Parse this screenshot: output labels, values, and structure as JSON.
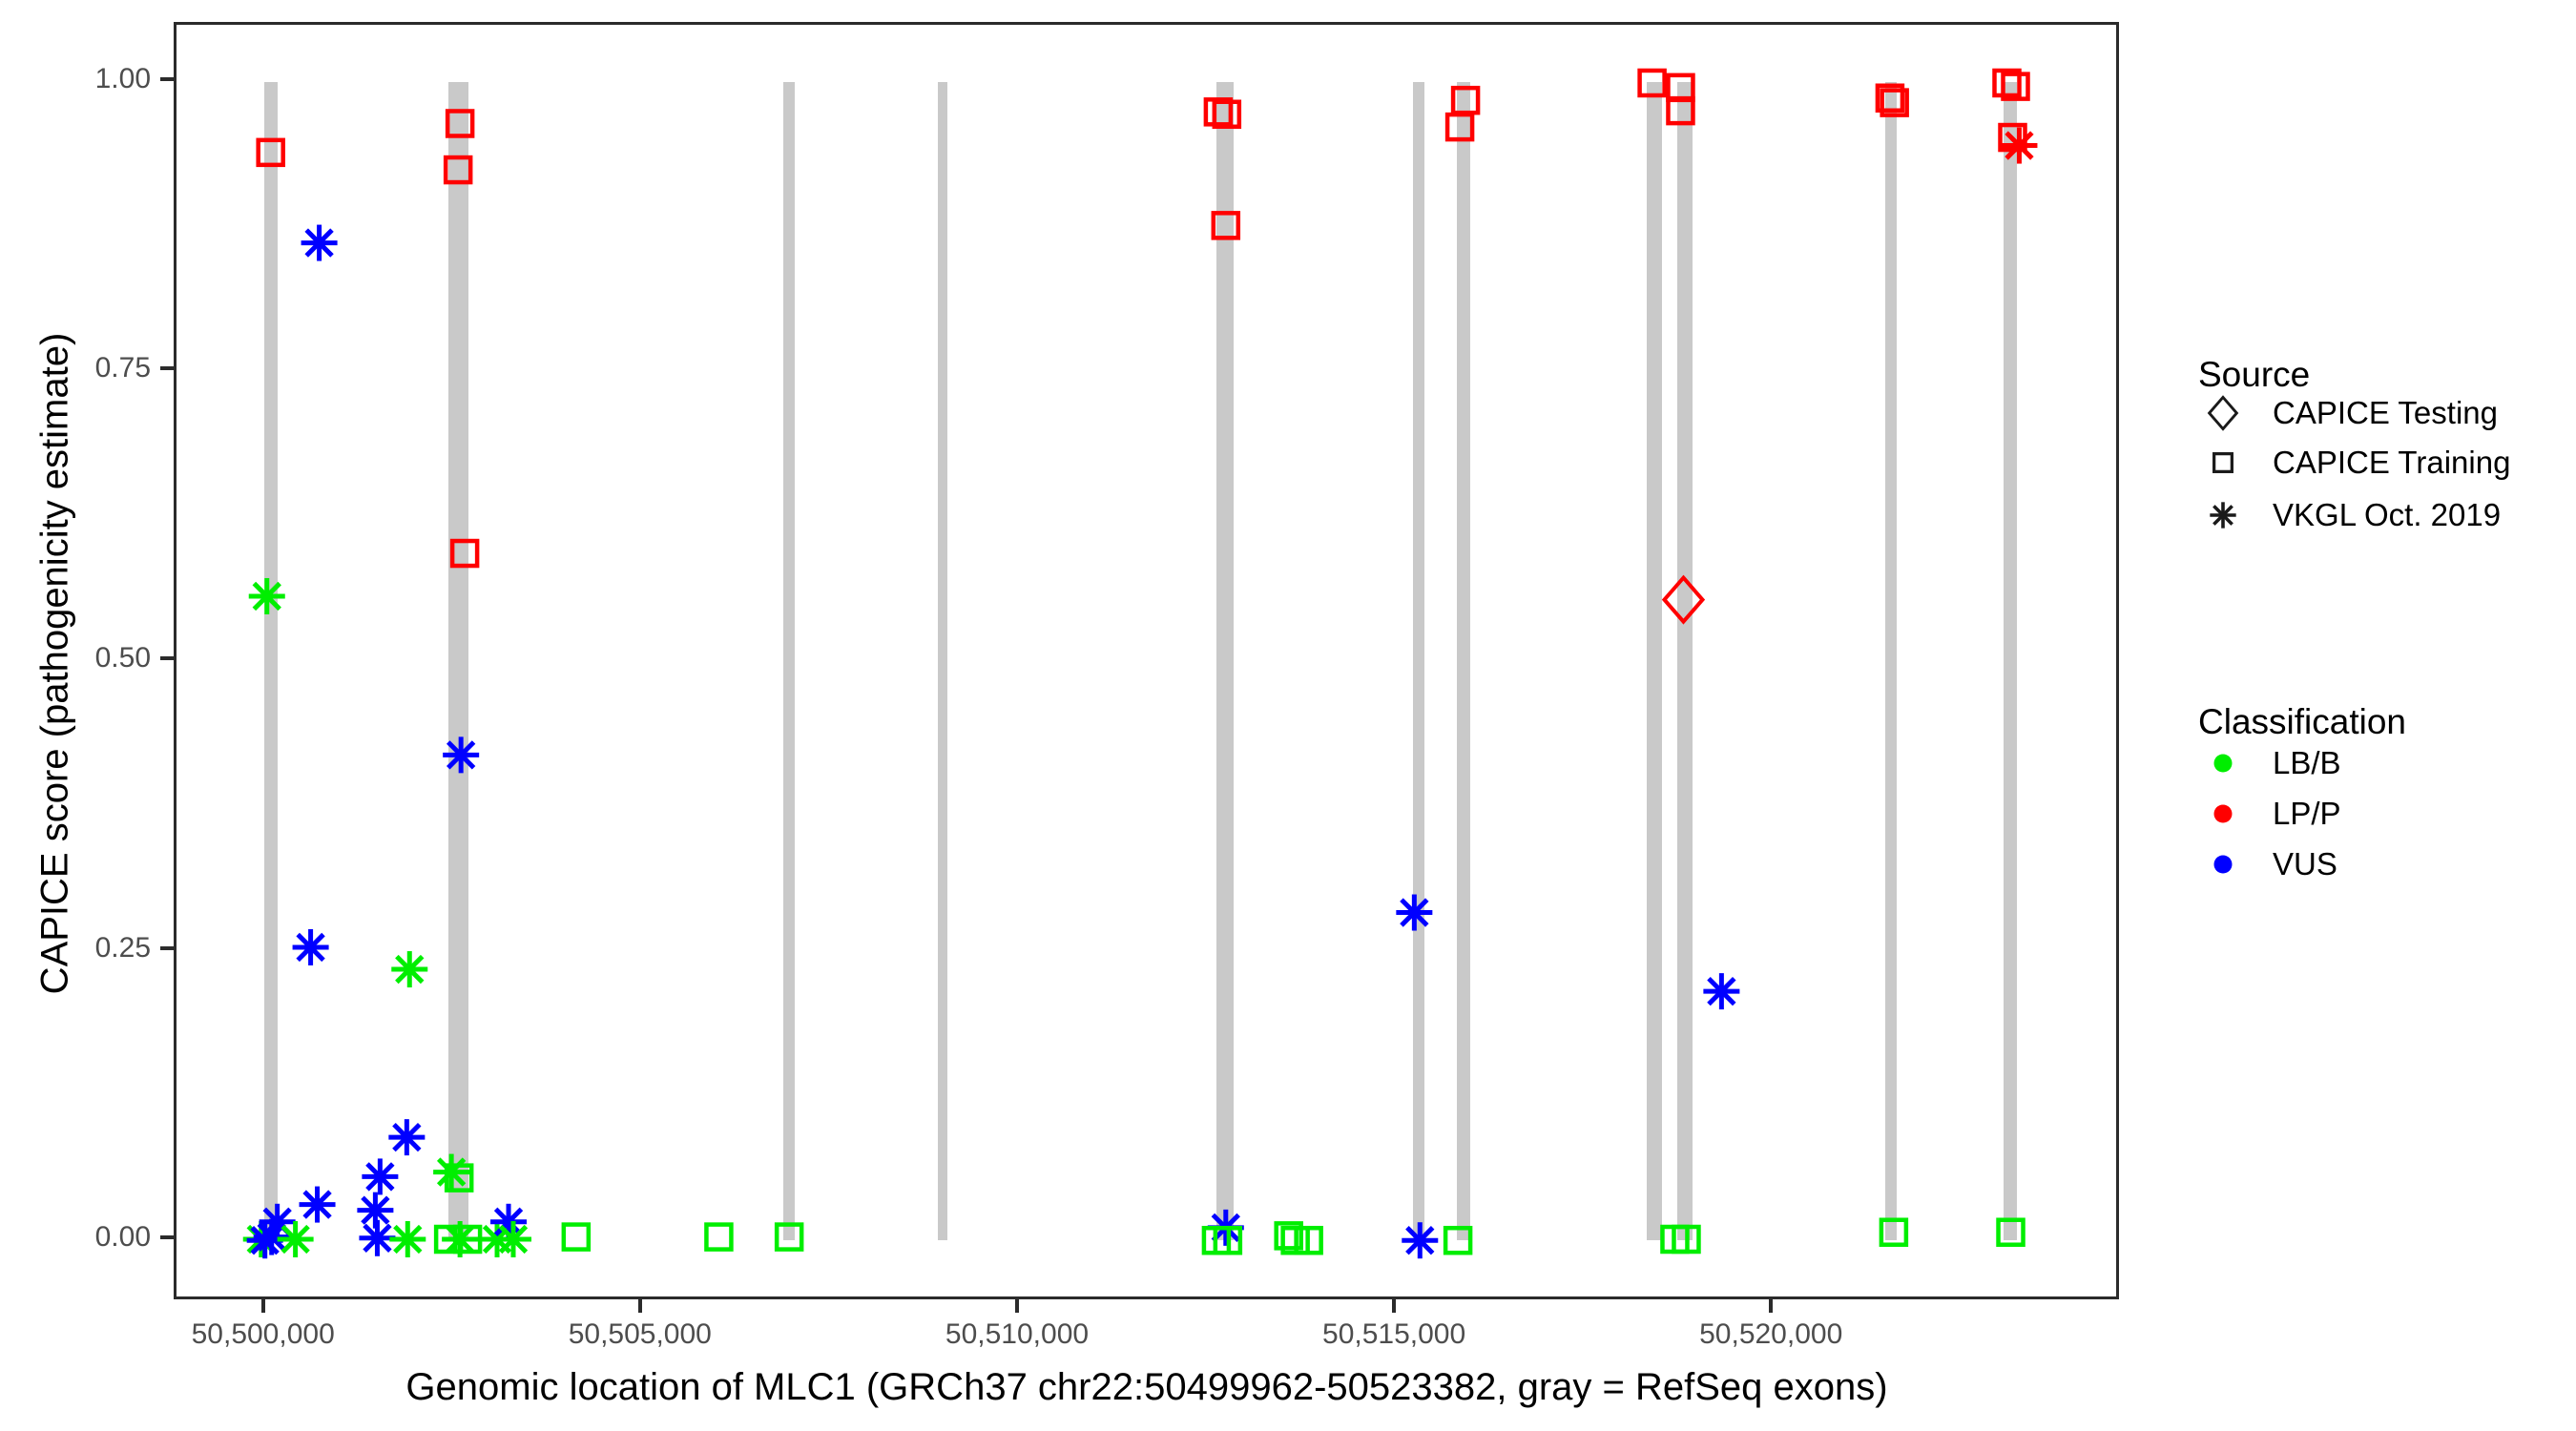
{
  "figure": {
    "x_axis_title": "Genomic location of MLC1 (GRCh37 chr22:50499962-50523382, gray = RefSeq exons)",
    "y_axis_title": "CAPICE score (pathogenicity estimate)"
  },
  "legend": {
    "source": {
      "title": "Source",
      "items": [
        {
          "label": "CAPICE Testing",
          "shape": "diamond"
        },
        {
          "label": "CAPICE Training",
          "shape": "square"
        },
        {
          "label": "VKGL Oct. 2019",
          "shape": "asterisk"
        }
      ]
    },
    "classification": {
      "title": "Classification",
      "items": [
        {
          "label": "LB/B",
          "color": "#00EE00"
        },
        {
          "label": "LP/P",
          "color": "#FF0000"
        },
        {
          "label": "VUS",
          "color": "#0000FF"
        }
      ]
    }
  },
  "chart_data": {
    "type": "scatter",
    "title": "",
    "xlabel": "Genomic location of MLC1 (GRCh37 chr22:50499962-50523382, gray = RefSeq exons)",
    "ylabel": "CAPICE score (pathogenicity estimate)",
    "xlim": [
      50498814,
      50524540
    ],
    "ylim": [
      -0.0484,
      1.0492
    ],
    "grid": false,
    "legend_position": "right",
    "x_ticks": [
      {
        "value": 50500000,
        "label": "50,500,000"
      },
      {
        "value": 50505000,
        "label": "50,505,000"
      },
      {
        "value": 50510000,
        "label": "50,510,000"
      },
      {
        "value": 50515000,
        "label": "50,515,000"
      },
      {
        "value": 50520000,
        "label": "50,520,000"
      }
    ],
    "y_ticks": [
      {
        "value": 0.0,
        "label": "0.00"
      },
      {
        "value": 0.25,
        "label": "0.25"
      },
      {
        "value": 0.5,
        "label": "0.50"
      },
      {
        "value": 0.75,
        "label": "0.75"
      },
      {
        "value": 1.0,
        "label": "1.00"
      }
    ],
    "colors": {
      "LB/B": "#00EE00",
      "LP/P": "#FF0000",
      "VUS": "#0000FF"
    },
    "exon_color": "#c9c9c9",
    "exon_band": {
      "score_min": 0.0,
      "score_max": 1.0
    },
    "exons": [
      {
        "start": 50499975,
        "end": 50500151
      },
      {
        "start": 50502423,
        "end": 50502688
      },
      {
        "start": 50506865,
        "end": 50507016
      },
      {
        "start": 50508909,
        "end": 50509035
      },
      {
        "start": 50512606,
        "end": 50512833
      },
      {
        "start": 50515218,
        "end": 50515369
      },
      {
        "start": 50515798,
        "end": 50515975
      },
      {
        "start": 50518310,
        "end": 50518512
      },
      {
        "start": 50518713,
        "end": 50518915
      },
      {
        "start": 50521476,
        "end": 50521627
      },
      {
        "start": 50523040,
        "end": 50523217
      }
    ],
    "points": [
      {
        "pos": 50499937,
        "score": 0.001,
        "source": "vkgl",
        "classification": "LB/B"
      },
      {
        "pos": 50499987,
        "score": 0.0,
        "source": "vkgl",
        "classification": "VUS"
      },
      {
        "pos": 50500076,
        "score": 0.003,
        "source": "vkgl",
        "classification": "VUS"
      },
      {
        "pos": 50500151,
        "score": 0.016,
        "source": "vkgl",
        "classification": "VUS"
      },
      {
        "pos": 50500391,
        "score": 0.001,
        "source": "vkgl",
        "classification": "LB/B"
      },
      {
        "pos": 50500063,
        "score": 0.939,
        "source": "training",
        "classification": "LP/P"
      },
      {
        "pos": 50500013,
        "score": 0.556,
        "source": "vkgl",
        "classification": "LB/B"
      },
      {
        "pos": 50500593,
        "score": 0.253,
        "source": "vkgl",
        "classification": "VUS"
      },
      {
        "pos": 50500707,
        "score": 0.861,
        "source": "vkgl",
        "classification": "VUS"
      },
      {
        "pos": 50500681,
        "score": 0.031,
        "source": "vkgl",
        "classification": "VUS"
      },
      {
        "pos": 50501451,
        "score": 0.026,
        "source": "vkgl",
        "classification": "VUS"
      },
      {
        "pos": 50501477,
        "score": 0.002,
        "source": "vkgl",
        "classification": "VUS"
      },
      {
        "pos": 50501514,
        "score": 0.055,
        "source": "vkgl",
        "classification": "VUS"
      },
      {
        "pos": 50501868,
        "score": 0.089,
        "source": "vkgl",
        "classification": "VUS"
      },
      {
        "pos": 50501880,
        "score": 0.001,
        "source": "vkgl",
        "classification": "LB/B"
      },
      {
        "pos": 50501905,
        "score": 0.234,
        "source": "vkgl",
        "classification": "LB/B"
      },
      {
        "pos": 50502574,
        "score": 0.964,
        "source": "training",
        "classification": "LP/P"
      },
      {
        "pos": 50502549,
        "score": 0.924,
        "source": "training",
        "classification": "LP/P"
      },
      {
        "pos": 50502637,
        "score": 0.593,
        "source": "training",
        "classification": "LP/P"
      },
      {
        "pos": 50502587,
        "score": 0.419,
        "source": "vkgl",
        "classification": "VUS"
      },
      {
        "pos": 50502460,
        "score": 0.059,
        "source": "vkgl",
        "classification": "LB/B"
      },
      {
        "pos": 50502562,
        "score": 0.054,
        "source": "training",
        "classification": "LB/B"
      },
      {
        "pos": 50502422,
        "score": 0.001,
        "source": "training",
        "classification": "LB/B"
      },
      {
        "pos": 50502574,
        "score": 0.001,
        "source": "vkgl",
        "classification": "LB/B"
      },
      {
        "pos": 50502675,
        "score": 0.001,
        "source": "training",
        "classification": "LB/B"
      },
      {
        "pos": 50503066,
        "score": 0.001,
        "source": "vkgl",
        "classification": "LB/B"
      },
      {
        "pos": 50503218,
        "score": 0.016,
        "source": "vkgl",
        "classification": "VUS"
      },
      {
        "pos": 50503281,
        "score": 0.001,
        "source": "vkgl",
        "classification": "LB/B"
      },
      {
        "pos": 50504114,
        "score": 0.003,
        "source": "training",
        "classification": "LB/B"
      },
      {
        "pos": 50506007,
        "score": 0.003,
        "source": "training",
        "classification": "LB/B"
      },
      {
        "pos": 50506940,
        "score": 0.003,
        "source": "training",
        "classification": "LB/B"
      },
      {
        "pos": 50512631,
        "score": 0.974,
        "source": "training",
        "classification": "LP/P"
      },
      {
        "pos": 50512744,
        "score": 0.972,
        "source": "training",
        "classification": "LP/P"
      },
      {
        "pos": 50512731,
        "score": 0.876,
        "source": "training",
        "classification": "LP/P"
      },
      {
        "pos": 50512731,
        "score": 0.011,
        "source": "vkgl",
        "classification": "VUS"
      },
      {
        "pos": 50512606,
        "score": 0.0,
        "source": "training",
        "classification": "LB/B"
      },
      {
        "pos": 50512757,
        "score": 0.0,
        "source": "training",
        "classification": "LB/B"
      },
      {
        "pos": 50513565,
        "score": 0.004,
        "source": "training",
        "classification": "LB/B"
      },
      {
        "pos": 50513653,
        "score": 0.0,
        "source": "training",
        "classification": "LB/B"
      },
      {
        "pos": 50513830,
        "score": 0.0,
        "source": "training",
        "classification": "LB/B"
      },
      {
        "pos": 50515231,
        "score": 0.283,
        "source": "vkgl",
        "classification": "VUS"
      },
      {
        "pos": 50515306,
        "score": 0.0,
        "source": "vkgl",
        "classification": "VUS"
      },
      {
        "pos": 50515835,
        "score": 0.961,
        "source": "training",
        "classification": "LP/P"
      },
      {
        "pos": 50515911,
        "score": 0.984,
        "source": "training",
        "classification": "LP/P"
      },
      {
        "pos": 50515810,
        "score": 0.0,
        "source": "training",
        "classification": "LB/B"
      },
      {
        "pos": 50518385,
        "score": 0.999,
        "source": "training",
        "classification": "LP/P"
      },
      {
        "pos": 50518763,
        "score": 0.995,
        "source": "training",
        "classification": "LP/P"
      },
      {
        "pos": 50518763,
        "score": 0.975,
        "source": "training",
        "classification": "LP/P"
      },
      {
        "pos": 50518801,
        "score": 0.553,
        "source": "testing",
        "classification": "LP/P"
      },
      {
        "pos": 50519306,
        "score": 0.215,
        "source": "vkgl",
        "classification": "VUS"
      },
      {
        "pos": 50518687,
        "score": 0.001,
        "source": "training",
        "classification": "LB/B"
      },
      {
        "pos": 50518839,
        "score": 0.001,
        "source": "training",
        "classification": "LB/B"
      },
      {
        "pos": 50521540,
        "score": 0.986,
        "source": "training",
        "classification": "LP/P"
      },
      {
        "pos": 50521600,
        "score": 0.982,
        "source": "training",
        "classification": "LP/P"
      },
      {
        "pos": 50521590,
        "score": 0.007,
        "source": "training",
        "classification": "LB/B"
      },
      {
        "pos": 50523091,
        "score": 0.999,
        "source": "training",
        "classification": "LP/P"
      },
      {
        "pos": 50523205,
        "score": 0.996,
        "source": "training",
        "classification": "LP/P"
      },
      {
        "pos": 50523167,
        "score": 0.952,
        "source": "training",
        "classification": "LP/P"
      },
      {
        "pos": 50523255,
        "score": 0.945,
        "source": "vkgl",
        "classification": "LP/P"
      },
      {
        "pos": 50523142,
        "score": 0.007,
        "source": "training",
        "classification": "LB/B"
      }
    ]
  }
}
